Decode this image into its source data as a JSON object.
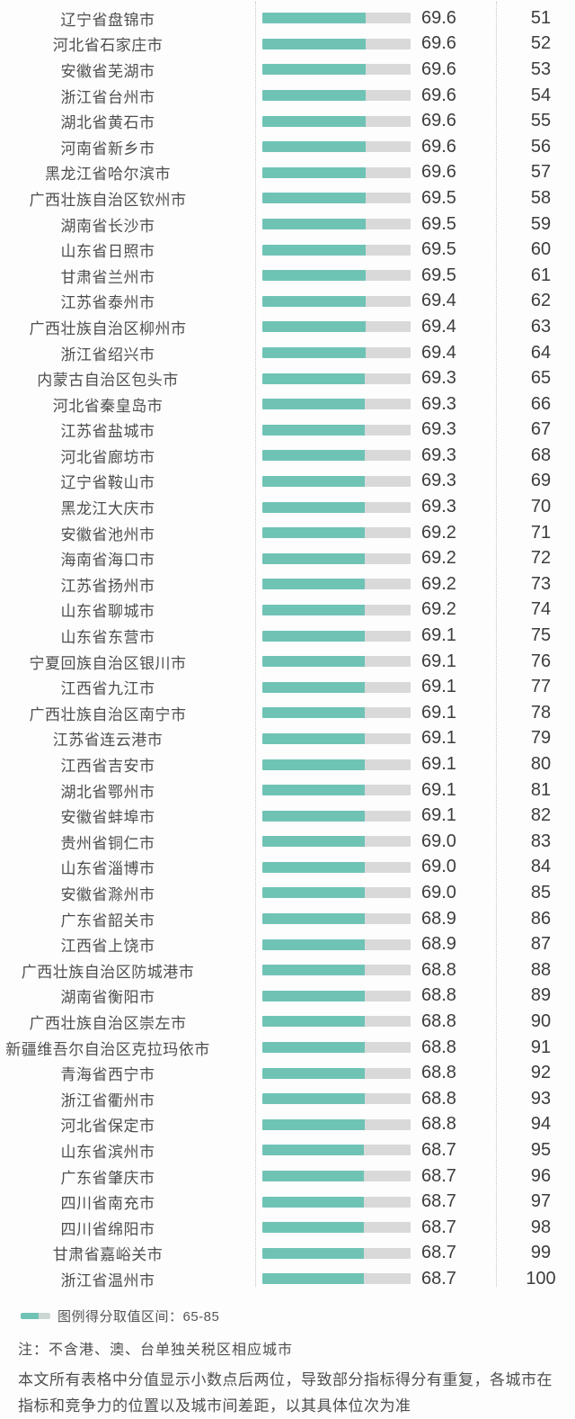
{
  "chart_data": {
    "type": "bar",
    "orientation": "horizontal",
    "title": "",
    "xlabel": "",
    "ylabel": "",
    "bar_axis_max": 100,
    "grid": false,
    "legend_position": "bottom",
    "legend": "图例得分取值区间：65-85",
    "categories": [
      "辽宁省盘锦市",
      "河北省石家庄市",
      "安徽省芜湖市",
      "浙江省台州市",
      "湖北省黄石市",
      "河南省新乡市",
      "黑龙江省哈尔滨市",
      "广西壮族自治区钦州市",
      "湖南省长沙市",
      "山东省日照市",
      "甘肃省兰州市",
      "江苏省泰州市",
      "广西壮族自治区柳州市",
      "浙江省绍兴市",
      "内蒙古自治区包头市",
      "河北省秦皇岛市",
      "江苏省盐城市",
      "河北省廊坊市",
      "辽宁省鞍山市",
      "黑龙江大庆市",
      "安徽省池州市",
      "海南省海口市",
      "江苏省扬州市",
      "山东省聊城市",
      "山东省东营市",
      "宁夏回族自治区银川市",
      "江西省九江市",
      "广西壮族自治区南宁市",
      "江苏省连云港市",
      "江西省吉安市",
      "湖北省鄂州市",
      "安徽省蚌埠市",
      "贵州省铜仁市",
      "山东省淄博市",
      "安徽省滁州市",
      "广东省韶关市",
      "江西省上饶市",
      "广西壮族自治区防城港市",
      "湖南省衡阳市",
      "广西壮族自治区崇左市",
      "新疆维吾尔自治区克拉玛依市",
      "青海省西宁市",
      "浙江省衢州市",
      "河北省保定市",
      "山东省滨州市",
      "广东省肇庆市",
      "四川省南充市",
      "四川省绵阳市",
      "甘肃省嘉峪关市",
      "浙江省温州市"
    ],
    "series": [
      {
        "name": "得分",
        "values": [
          69.6,
          69.6,
          69.6,
          69.6,
          69.6,
          69.6,
          69.6,
          69.5,
          69.5,
          69.5,
          69.5,
          69.4,
          69.4,
          69.4,
          69.3,
          69.3,
          69.3,
          69.3,
          69.3,
          69.3,
          69.2,
          69.2,
          69.2,
          69.2,
          69.1,
          69.1,
          69.1,
          69.1,
          69.1,
          69.1,
          69.1,
          69.1,
          69.0,
          69.0,
          69.0,
          68.9,
          68.9,
          68.8,
          68.8,
          68.8,
          68.8,
          68.8,
          68.8,
          68.8,
          68.7,
          68.7,
          68.7,
          68.7,
          68.7,
          68.7
        ]
      }
    ],
    "ranks": [
      51,
      52,
      53,
      54,
      55,
      56,
      57,
      58,
      59,
      60,
      61,
      62,
      63,
      64,
      65,
      66,
      67,
      68,
      69,
      70,
      71,
      72,
      73,
      74,
      75,
      76,
      77,
      78,
      79,
      80,
      81,
      82,
      83,
      84,
      85,
      86,
      87,
      88,
      89,
      90,
      91,
      92,
      93,
      94,
      95,
      96,
      97,
      98,
      99,
      100
    ]
  },
  "colors": {
    "bar_fill": "#6fc3b5",
    "bar_track": "#d9d9d9",
    "legend_gray": "#ccd7d3",
    "divider": "#c5c5c5"
  },
  "footer": {
    "legend_label": "图例得分取值区间：65-85",
    "note": "注：不含港、澳、台单独关税区相应城市",
    "disclaimer": "本文所有表格中分值显示小数点后两位，导致部分指标得分有重复，各城市在指标和竞争力的位置以及城市间差距，以其具体位次为准"
  }
}
